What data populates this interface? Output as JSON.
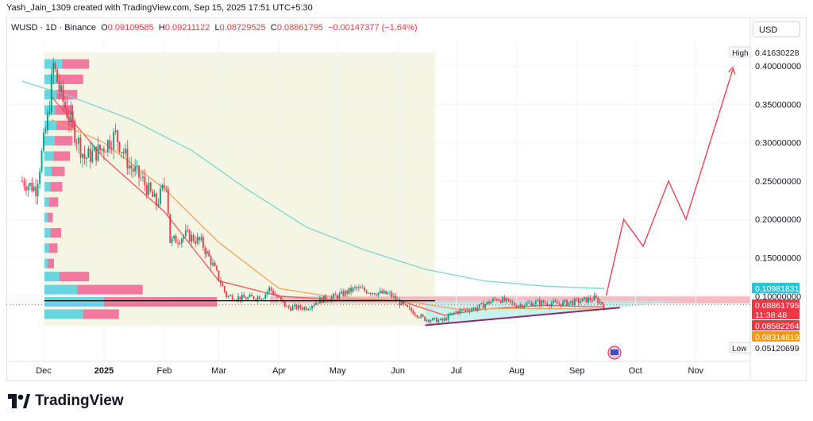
{
  "header": {
    "attribution": "Yash_Jain_1309 created with TradingView.com, Sep 15, 2025 17:51 UTC+5:30"
  },
  "ohlc": {
    "symbol": "WUSD · 1D · Binance",
    "o_label": "O",
    "o": "0.09109585",
    "h_label": "H",
    "h": "0.09211122",
    "l_label": "L",
    "l": "0.08729525",
    "c_label": "C",
    "c": "0.08861795",
    "change": "−0.00147377 (−1.64%)"
  },
  "currency": "USD",
  "colors": {
    "up": "#089981",
    "down": "#f23645",
    "ma_fast": "#f7525f",
    "ma_mid": "#f7a35c",
    "ma_slow": "#7fd3d0",
    "projection": "#f23645",
    "trendline": "#8e2a6d",
    "support": "#000000",
    "volume_up": "#4dd0e1",
    "volume_down": "#f06292"
  },
  "chart_data": {
    "type": "candlestick",
    "y_scale": "linear",
    "ylim": [
      0.03,
      0.44
    ],
    "x_ticks": [
      "Dec",
      "2025",
      "Feb",
      "Mar",
      "Apr",
      "May",
      "Jun",
      "Jul",
      "Aug",
      "Sep",
      "Oct",
      "Nov"
    ],
    "y_ticks": [
      "0.40000000",
      "0.35000000",
      "0.30000000",
      "0.25000000",
      "0.20000000",
      "0.15000000",
      "0.10000000"
    ],
    "high": {
      "label": "High",
      "value": "0.41630228"
    },
    "low": {
      "label": "Low",
      "value": "0.05120699"
    },
    "price_tags": [
      {
        "value": "0.10981831",
        "note": "slow MA",
        "color": "#26c6da"
      },
      {
        "value": "0.08861795",
        "note": "last close",
        "color": "#f23645"
      },
      {
        "value": "11:38:48",
        "note": "countdown",
        "color": "#f23645"
      },
      {
        "value": "0.08582264",
        "note": "fast MA",
        "color": "#f23645"
      },
      {
        "value": "0.08314619",
        "note": "mid MA",
        "color": "#ff9800"
      }
    ],
    "price_path": [
      [
        "2024-11-20",
        0.25
      ],
      [
        "2024-11-27",
        0.24
      ],
      [
        "2024-12-03",
        0.33
      ],
      [
        "2024-12-06",
        0.4
      ],
      [
        "2024-12-10",
        0.36
      ],
      [
        "2024-12-16",
        0.32
      ],
      [
        "2024-12-22",
        0.28
      ],
      [
        "2024-12-30",
        0.29
      ],
      [
        "2025-01-07",
        0.31
      ],
      [
        "2025-01-14",
        0.27
      ],
      [
        "2025-01-21",
        0.25
      ],
      [
        "2025-01-28",
        0.22
      ],
      [
        "2025-02-02",
        0.25
      ],
      [
        "2025-02-04",
        0.17
      ],
      [
        "2025-02-12",
        0.18
      ],
      [
        "2025-02-20",
        0.17
      ],
      [
        "2025-02-26",
        0.14
      ],
      [
        "2025-03-05",
        0.1
      ],
      [
        "2025-03-14",
        0.097
      ],
      [
        "2025-03-24",
        0.1
      ],
      [
        "2025-03-27",
        0.11
      ],
      [
        "2025-04-05",
        0.085
      ],
      [
        "2025-04-15",
        0.085
      ],
      [
        "2025-04-22",
        0.095
      ],
      [
        "2025-05-01",
        0.1
      ],
      [
        "2025-05-10",
        0.11
      ],
      [
        "2025-05-20",
        0.105
      ],
      [
        "2025-05-28",
        0.102
      ],
      [
        "2025-06-05",
        0.085
      ],
      [
        "2025-06-15",
        0.07
      ],
      [
        "2025-06-24",
        0.068
      ],
      [
        "2025-07-01",
        0.08
      ],
      [
        "2025-07-12",
        0.085
      ],
      [
        "2025-07-22",
        0.097
      ],
      [
        "2025-08-01",
        0.088
      ],
      [
        "2025-08-12",
        0.092
      ],
      [
        "2025-08-22",
        0.09
      ],
      [
        "2025-09-01",
        0.093
      ],
      [
        "2025-09-10",
        0.097
      ],
      [
        "2025-09-15",
        0.0886
      ]
    ],
    "moving_averages": [
      {
        "name": "fast",
        "points": [
          [
            "2024-12-05",
            0.36
          ],
          [
            "2025-01-01",
            0.28
          ],
          [
            "2025-02-01",
            0.21
          ],
          [
            "2025-03-01",
            0.12
          ],
          [
            "2025-04-01",
            0.1
          ],
          [
            "2025-05-01",
            0.095
          ],
          [
            "2025-06-01",
            0.095
          ],
          [
            "2025-06-25",
            0.075
          ],
          [
            "2025-07-15",
            0.083
          ],
          [
            "2025-08-15",
            0.088
          ],
          [
            "2025-09-15",
            0.0858
          ]
        ]
      },
      {
        "name": "mid",
        "points": [
          [
            "2024-12-05",
            0.33
          ],
          [
            "2025-01-01",
            0.3
          ],
          [
            "2025-02-01",
            0.24
          ],
          [
            "2025-03-01",
            0.17
          ],
          [
            "2025-04-01",
            0.11
          ],
          [
            "2025-05-01",
            0.098
          ],
          [
            "2025-06-01",
            0.095
          ],
          [
            "2025-07-01",
            0.083
          ],
          [
            "2025-08-01",
            0.084
          ],
          [
            "2025-09-15",
            0.0831
          ]
        ]
      },
      {
        "name": "slow",
        "points": [
          [
            "2024-11-20",
            0.38
          ],
          [
            "2024-12-15",
            0.36
          ],
          [
            "2025-01-15",
            0.33
          ],
          [
            "2025-02-15",
            0.29
          ],
          [
            "2025-03-15",
            0.24
          ],
          [
            "2025-04-15",
            0.19
          ],
          [
            "2025-05-15",
            0.16
          ],
          [
            "2025-06-15",
            0.135
          ],
          [
            "2025-07-15",
            0.12
          ],
          [
            "2025-08-15",
            0.113
          ],
          [
            "2025-09-15",
            0.1098
          ]
        ]
      }
    ],
    "support_level": 0.094,
    "resistance_zone": [
      0.0905,
      0.1005
    ],
    "trendline": [
      [
        "2025-06-15",
        0.062
      ],
      [
        "2025-09-23",
        0.085
      ]
    ],
    "projection": [
      [
        "2025-09-16",
        0.1005
      ],
      [
        "2025-09-25",
        0.2
      ],
      [
        "2025-10-05",
        0.165
      ],
      [
        "2025-10-18",
        0.25
      ],
      [
        "2025-10-27",
        0.2
      ],
      [
        "2025-11-20",
        0.395
      ]
    ],
    "volume_profile": [
      {
        "price": 0.402,
        "up": 0.3,
        "down": 0.45
      },
      {
        "price": 0.382,
        "up": 0.25,
        "down": 0.4
      },
      {
        "price": 0.362,
        "up": 0.2,
        "down": 0.35
      },
      {
        "price": 0.342,
        "up": 0.18,
        "down": 0.3
      },
      {
        "price": 0.322,
        "up": 0.2,
        "down": 0.32
      },
      {
        "price": 0.302,
        "up": 0.17,
        "down": 0.3
      },
      {
        "price": 0.282,
        "up": 0.15,
        "down": 0.28
      },
      {
        "price": 0.262,
        "up": 0.12,
        "down": 0.22
      },
      {
        "price": 0.242,
        "up": 0.1,
        "down": 0.2
      },
      {
        "price": 0.222,
        "up": 0.08,
        "down": 0.15
      },
      {
        "price": 0.202,
        "up": 0.06,
        "down": 0.08
      },
      {
        "price": 0.182,
        "up": 0.1,
        "down": 0.18
      },
      {
        "price": 0.162,
        "up": 0.08,
        "down": 0.14
      },
      {
        "price": 0.142,
        "up": 0.06,
        "down": 0.1
      },
      {
        "price": 0.125,
        "up": 0.25,
        "down": 0.5
      },
      {
        "price": 0.108,
        "up": 0.55,
        "down": 1.1
      },
      {
        "price": 0.092,
        "up": 1.0,
        "down": 1.9
      },
      {
        "price": 0.076,
        "up": 0.65,
        "down": 0.6
      }
    ]
  },
  "footer": {
    "brand": "TradingView"
  }
}
